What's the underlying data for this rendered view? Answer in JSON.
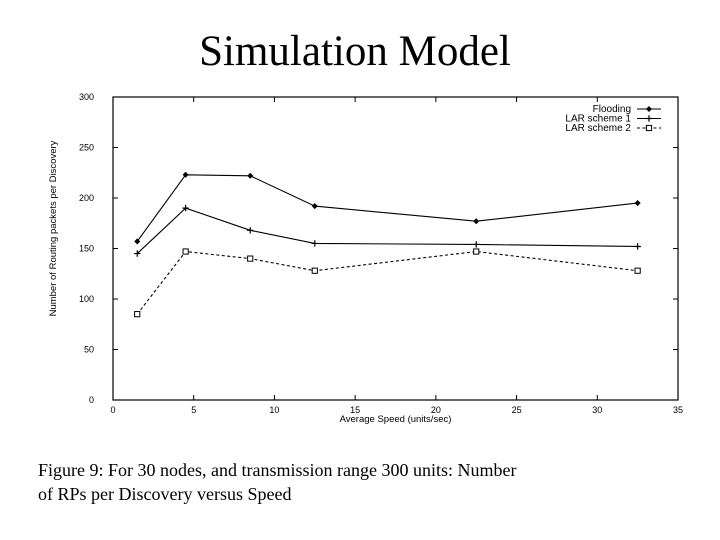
{
  "slide": {
    "title": "Simulation Model"
  },
  "caption": {
    "line1": "Figure 9: For 30 nodes, and transmission range 300 units: Number",
    "line2": "of RPs per Discovery versus Speed"
  },
  "chart_data": {
    "type": "line",
    "title": "",
    "xlabel": "Average Speed (units/sec)",
    "ylabel": "Number of Routing packets per Discovery",
    "xlim": [
      0,
      35
    ],
    "ylim": [
      0,
      300
    ],
    "xticks": [
      0,
      5,
      10,
      15,
      20,
      25,
      30,
      35
    ],
    "yticks": [
      0,
      50,
      100,
      150,
      200,
      250,
      300
    ],
    "xtick_labels": [
      "0",
      "5",
      "10",
      "15",
      "20",
      "25",
      "30",
      "35"
    ],
    "ytick_labels": [
      "0",
      "50",
      "100",
      "150",
      "200",
      "250",
      "300"
    ],
    "grid": false,
    "legend_position": "top-right",
    "x": [
      1.5,
      4.5,
      8.5,
      12.5,
      22.5,
      32.5
    ],
    "series": [
      {
        "name": "Flooding",
        "values": [
          157,
          223,
          222,
          192,
          177,
          195
        ],
        "marker": "diamond",
        "line_style": "solid",
        "color": "#000000"
      },
      {
        "name": "LAR scheme 1",
        "values": [
          145,
          190,
          168,
          155,
          154,
          152
        ],
        "marker": "plus",
        "line_style": "solid",
        "color": "#000000"
      },
      {
        "name": "LAR scheme 2",
        "values": [
          85,
          147,
          140,
          128,
          147,
          128
        ],
        "marker": "square",
        "line_style": "dashed",
        "color": "#000000"
      }
    ]
  }
}
